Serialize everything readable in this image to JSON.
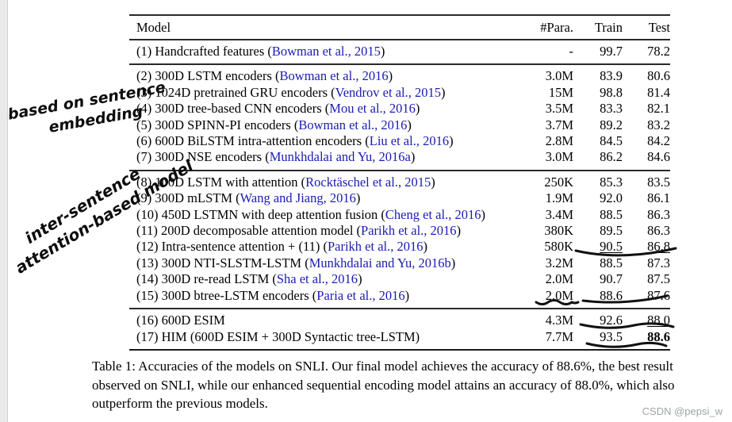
{
  "colors": {
    "citation_blue": "#1b1bb3",
    "rule": "#2a2a2a",
    "watermark_gray": "#a0a4a8",
    "ink": "#0d0d0d"
  },
  "table": {
    "columns": [
      "Model",
      "#Para.",
      "Train",
      "Test"
    ],
    "groups": [
      {
        "name": "baseline",
        "rows": [
          {
            "pre": "(1) Handcrafted features (",
            "cite": "Bowman et al., 2015",
            "post": ")",
            "para": "-",
            "train": "99.7",
            "test": "78.2"
          }
        ]
      },
      {
        "name": "sentence-embedding",
        "rows": [
          {
            "pre": "(2) 300D LSTM encoders (",
            "cite": "Bowman et al., 2016",
            "post": ")",
            "para": "3.0M",
            "train": "83.9",
            "test": "80.6"
          },
          {
            "pre": "(3) 1024D pretrained GRU encoders (",
            "cite": "Vendrov et al., 2015",
            "post": ")",
            "para": "15M",
            "train": "98.8",
            "test": "81.4"
          },
          {
            "pre": "(4) 300D tree-based CNN encoders (",
            "cite": "Mou et al., 2016",
            "post": ")",
            "para": "3.5M",
            "train": "83.3",
            "test": "82.1"
          },
          {
            "pre": "(5) 300D SPINN-PI encoders (",
            "cite": "Bowman et al., 2016",
            "post": ")",
            "para": "3.7M",
            "train": "89.2",
            "test": "83.2"
          },
          {
            "pre": "(6) 600D BiLSTM intra-attention encoders (",
            "cite": "Liu et al., 2016",
            "post": ")",
            "para": "2.8M",
            "train": "84.5",
            "test": "84.2"
          },
          {
            "pre": "(7) 300D NSE encoders (",
            "cite": "Munkhdalai and Yu, 2016a",
            "post": ")",
            "para": "3.0M",
            "train": "86.2",
            "test": "84.6"
          }
        ]
      },
      {
        "name": "inter-sentence-attention",
        "rows": [
          {
            "pre": "(8) 100D LSTM with attention (",
            "cite": "Rocktäschel et al., 2015",
            "post": ")",
            "para": "250K",
            "train": "85.3",
            "test": "83.5"
          },
          {
            "pre": "(9) 300D mLSTM (",
            "cite": "Wang and Jiang, 2016",
            "post": ")",
            "para": "1.9M",
            "train": "92.0",
            "test": "86.1"
          },
          {
            "pre": "(10) 450D LSTMN with deep attention fusion (",
            "cite": "Cheng et al., 2016",
            "post": ")",
            "para": "3.4M",
            "train": "88.5",
            "test": "86.3"
          },
          {
            "pre": "(11) 200D decomposable attention model (",
            "cite": "Parikh et al., 2016",
            "post": ")",
            "para": "380K",
            "train": "89.5",
            "test": "86.3"
          },
          {
            "pre": "(12) Intra-sentence attention + (11) (",
            "cite": "Parikh et al., 2016",
            "post": ")",
            "para": "580K",
            "train": "90.5",
            "test": "86.8",
            "train_underline": true,
            "test_underline": true
          },
          {
            "pre": "(13) 300D NTI-SLSTM-LSTM (",
            "cite": "Munkhdalai and Yu, 2016b",
            "post": ")",
            "para": "3.2M",
            "train": "88.5",
            "test": "87.3"
          },
          {
            "pre": "(14) 300D re-read LSTM (",
            "cite": "Sha et al., 2016",
            "post": ")",
            "para": "2.0M",
            "train": "90.7",
            "test": "87.5"
          },
          {
            "pre": "(15) 300D btree-LSTM encoders (",
            "cite": "Paria et al., 2016",
            "post": ")",
            "para": "2.0M",
            "train": "88.6",
            "test": "87.6"
          }
        ]
      },
      {
        "name": "our-models",
        "rows": [
          {
            "pre": "(16) 600D ESIM",
            "cite": "",
            "post": "",
            "para": "4.3M",
            "train": "92.6",
            "test": "88.0",
            "test_underline": true
          },
          {
            "pre": "(17) HIM (600D ESIM + 300D Syntactic tree-LSTM)",
            "cite": "",
            "post": "",
            "para": "7.7M",
            "train": "93.5",
            "test": "88.6",
            "test_bold": true
          }
        ]
      }
    ]
  },
  "caption": {
    "text": "Table 1: Accuracies of the models on SNLI. Our final model achieves the accuracy of 88.6%, the best result observed on SNLI, while our enhanced sequential encoding model attains an accuracy of 88.0%, which also outperform the previous models."
  },
  "annotations": {
    "note1": {
      "line1": "based on sentence",
      "line2": "embedding"
    },
    "note2": {
      "line1": "inter-sentence",
      "line2": "attention-based model"
    }
  },
  "watermark": {
    "text": "CSDN @pepsi_w"
  }
}
